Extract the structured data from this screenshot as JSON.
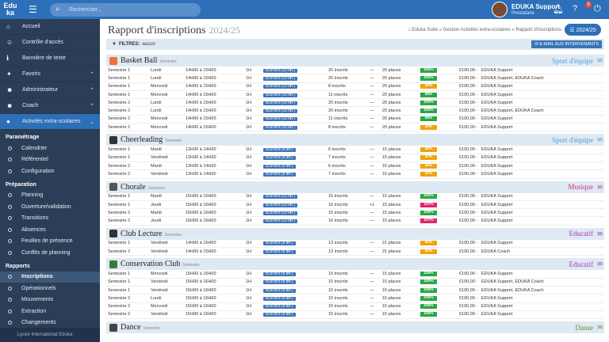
{
  "app": {
    "logo_top": "Edu",
    "logo_bottom": "ka",
    "search_placeholder": "Rechercher..."
  },
  "user": {
    "name": "EDUKA Support",
    "role": "Prestataire",
    "help_badge": "3"
  },
  "sidebar": {
    "items": [
      {
        "label": "Accueil",
        "icon": "home-icon",
        "glyph": "⌂"
      },
      {
        "label": "Contrôle d'accès",
        "icon": "user-key-icon",
        "glyph": "☺"
      },
      {
        "label": "Bannière de texte",
        "icon": "info-icon",
        "glyph": "ℹ"
      },
      {
        "label": "Favoris",
        "icon": "pin-icon",
        "glyph": "✦",
        "chev": "⌃"
      },
      {
        "label": "Administrateur",
        "icon": "admin-icon",
        "glyph": "☻",
        "chev": "⌃"
      },
      {
        "label": "Coach",
        "icon": "coach-icon",
        "glyph": "☻",
        "chev": "⌃"
      },
      {
        "label": "Activités extra-scolaires",
        "icon": "activities-icon",
        "glyph": "●",
        "chev": "⌄"
      }
    ],
    "groups": [
      {
        "title": "Paramétrage",
        "items": [
          "Calendrier",
          "Référentiel",
          "Configuration"
        ]
      },
      {
        "title": "Préparation",
        "items": [
          "Planning",
          "Ouverture/validation",
          "Transitions",
          "Absences",
          "Feuilles de présence",
          "Conflits de planning"
        ]
      },
      {
        "title": "Rapports",
        "items": [
          "Inscriptions",
          "Opérationnels",
          "Mouvements",
          "Extraction",
          "Changements"
        ]
      }
    ],
    "footer": "Lycée International Eduka"
  },
  "page": {
    "title": "Rapport d'inscriptions",
    "year": "2024/25",
    "breadcrumb": "⌂ Eduka Suite » Gestion Activités extra-scolaires » Rapport d'inscriptions",
    "year_button": "☰ 2024/25",
    "filters_label": "FILTRES:",
    "filters_value": "aucun",
    "mail_button": "✉ E-MAIL AUX INTERVENANTS"
  },
  "colors": {
    "green": "#28a745",
    "red": "#e0246a",
    "orange": "#f0a30a",
    "sport": "#4a9fd8",
    "musique": "#d0318c",
    "educatif": "#9b3fbd",
    "danse": "#6b8f28"
  },
  "sections": [
    {
      "name": "Basket Ball",
      "type": "Semestre",
      "category": "Sport d'équipe",
      "cat_color": "#4a9fd8",
      "icon_color": "#e8743b",
      "rows": [
        [
          "Semestre 1",
          "Lundi",
          "14H00 à 15H00",
          "1H",
          "ÉLÈVES (14 6R.)",
          "20 inscrits",
          "—",
          "20 places",
          "100%",
          "#28a745",
          "€100,00 -",
          "EDUKA Support"
        ],
        [
          "Semestre 1",
          "Lundi",
          "14H00 à 15H00",
          "1H",
          "ÉLÈVES (14 6R.)",
          "20 inscrits",
          "—",
          "20 places",
          "100%",
          "#28a745",
          "€100,00 -",
          "EDUKA Support, EDUKA Coach"
        ],
        [
          "Semestre 1",
          "Mercredi",
          "14H00 à 15H00",
          "1H",
          "ÉLÈVES (14 6R.)",
          "8 inscrits",
          "—",
          "20 places",
          "40%",
          "#f0a30a",
          "€100,00 -",
          "EDUKA Support"
        ],
        [
          "Semestre 1",
          "Mercredi",
          "14H00 à 15H00",
          "1H",
          "ÉLÈVES (14 6R.)",
          "11 inscrits",
          "—",
          "20 places",
          "55%",
          "#28a745",
          "€100,00 -",
          "EDUKA Support"
        ],
        [
          "Semestre 2",
          "Lundi",
          "14H00 à 15H00",
          "1H",
          "ÉLÈVES (14 6R.)",
          "20 inscrits",
          "—",
          "20 places",
          "100%",
          "#28a745",
          "€100,00 -",
          "EDUKA Support"
        ],
        [
          "Semestre 2",
          "Lundi",
          "14H00 à 15H00",
          "1H",
          "ÉLÈVES (14 6R.)",
          "20 inscrits",
          "—",
          "20 places",
          "100%",
          "#28a745",
          "€100,00 -",
          "EDUKA Support, EDUKA Coach"
        ],
        [
          "Semestre 2",
          "Mercredi",
          "14H00 à 15H00",
          "1H",
          "ÉLÈVES (14 6R.)",
          "11 inscrits",
          "—",
          "20 places",
          "55%",
          "#28a745",
          "€100,00 -",
          "EDUKA Support"
        ],
        [
          "Semestre 2",
          "Mercredi",
          "14H00 à 15H00",
          "1H",
          "ÉLÈVES (14 6R.)",
          "8 inscrits",
          "—",
          "20 places",
          "40%",
          "#f0a30a",
          "€100,00 -",
          "EDUKA Support"
        ]
      ]
    },
    {
      "name": "Cheerleading",
      "type": "Semestre",
      "category": "Sport d'équipe",
      "cat_color": "#4a9fd8",
      "icon_color": "#333",
      "rows": [
        [
          "Semestre 1",
          "Mardi",
          "13H30 à 14H30",
          "1H",
          "ÉLÈVES (6 8R.)",
          "6 inscrits",
          "—",
          "15 places",
          "40%",
          "#f0a30a",
          "€100,00 -",
          "EDUKA Support"
        ],
        [
          "Semestre 1",
          "Vendredi",
          "13H30 à 14H30",
          "1H",
          "ÉLÈVES (6 8R.)",
          "7 inscrits",
          "—",
          "15 places",
          "47%",
          "#f0a30a",
          "€100,00 -",
          "EDUKA Support"
        ],
        [
          "Semestre 2",
          "Mardi",
          "13H30 à 14H30",
          "1H",
          "ÉLÈVES (6 8R.)",
          "6 inscrits",
          "—",
          "15 places",
          "40%",
          "#f0a30a",
          "€100,00 -",
          "EDUKA Support"
        ],
        [
          "Semestre 2",
          "Vendredi",
          "13H30 à 14H30",
          "1H",
          "ÉLÈVES (6 8R.)",
          "7 inscrits",
          "—",
          "15 places",
          "47%",
          "#f0a30a",
          "€100,00 -",
          "EDUKA Support"
        ]
      ]
    },
    {
      "name": "Chorale",
      "type": "Semestre",
      "category": "Musique",
      "cat_color": "#d0318c",
      "icon_color": "#555",
      "rows": [
        [
          "Semestre 1",
          "Mardi",
          "15H00 à 16H00",
          "1H",
          "ÉLÈVES (14 6R.)",
          "15 inscrits",
          "—",
          "15 places",
          "100%",
          "#28a745",
          "€100,00 -",
          "EDUKA Support"
        ],
        [
          "Semestre 1",
          "Jeudi",
          "15H00 à 16H00",
          "1H",
          "ÉLÈVES (14 6R.)",
          "16 inscrits",
          "+1",
          "15 places",
          "107%",
          "#e0246a",
          "€100,00 -",
          "EDUKA Support"
        ],
        [
          "Semestre 2",
          "Mardi",
          "15H00 à 16H00",
          "1H",
          "ÉLÈVES (14 6R.)",
          "15 inscrits",
          "—",
          "15 places",
          "100%",
          "#28a745",
          "€100,00 -",
          "EDUKA Support"
        ],
        [
          "Semestre 2",
          "Jeudi",
          "15H00 à 16H00",
          "1H",
          "ÉLÈVES (14 6R.)",
          "16 inscrits",
          "—",
          "15 places",
          "107%",
          "#e0246a",
          "€100,00 -",
          "EDUKA Support"
        ]
      ]
    },
    {
      "name": "Club Lecture",
      "type": "Semestre",
      "category": "Educatif",
      "cat_color": "#9b3fbd",
      "icon_color": "#333",
      "rows": [
        [
          "Semestre 1",
          "Vendredi",
          "14H00 à 15H00",
          "1H",
          "ÉLÈVES (5 8R.)",
          "13 inscrits",
          "—",
          "21 places",
          "62%",
          "#f0a30a",
          "€100,00 -",
          "EDUKA Support"
        ],
        [
          "Semestre 2",
          "Vendredi",
          "14H00 à 15H00",
          "1H",
          "ÉLÈVES (5 8R.)",
          "13 inscrits",
          "—",
          "21 places",
          "62%",
          "#f0a30a",
          "€100,00 -",
          "EDUKA Coach"
        ]
      ]
    },
    {
      "name": "Conservation Club",
      "type": "Semestre",
      "category": "Educatif",
      "cat_color": "#9b3fbd",
      "icon_color": "#3a7a3a",
      "rows": [
        [
          "Semestre 1",
          "Mercredi",
          "15H00 à 16H00",
          "1H",
          "ÉLÈVES (6 8R.)",
          "15 inscrits",
          "—",
          "15 places",
          "100%",
          "#28a745",
          "€100,00 -",
          "EDUKA Support"
        ],
        [
          "Semestre 1",
          "Vendredi",
          "15H00 à 16H00",
          "1H",
          "ÉLÈVES (6 8R.)",
          "15 inscrits",
          "—",
          "15 places",
          "100%",
          "#28a745",
          "€100,00 -",
          "EDUKA Support, EDUKA Coach"
        ],
        [
          "Semestre 1",
          "Vendredi",
          "15H00 à 16H00",
          "1H",
          "ÉLÈVES (6 8R.)",
          "15 inscrits",
          "—",
          "15 places",
          "100%",
          "#28a745",
          "€100,00 -",
          "EDUKA Support, EDUKA Coach"
        ],
        [
          "Semestre 2",
          "Lundi",
          "15H00 à 16H00",
          "1H",
          "ÉLÈVES (6 8R.)",
          "15 inscrits",
          "—",
          "15 places",
          "100%",
          "#28a745",
          "€100,00 -",
          "EDUKA Support"
        ],
        [
          "Semestre 2",
          "Mercredi",
          "15H00 à 16H00",
          "1H",
          "ÉLÈVES (6 8R.)",
          "15 inscrits",
          "—",
          "15 places",
          "100%",
          "#28a745",
          "€100,00 -",
          "EDUKA Support"
        ],
        [
          "Semestre 2",
          "Vendredi",
          "15H00 à 16H00",
          "1H",
          "ÉLÈVES (6 8R.)",
          "15 inscrits",
          "—",
          "15 places",
          "100%",
          "#28a745",
          "€100,00 -",
          "EDUKA Support"
        ]
      ]
    },
    {
      "name": "Dance",
      "type": "Semestre",
      "category": "Danse",
      "cat_color": "#6b8f28",
      "icon_color": "#444",
      "rows": []
    }
  ]
}
